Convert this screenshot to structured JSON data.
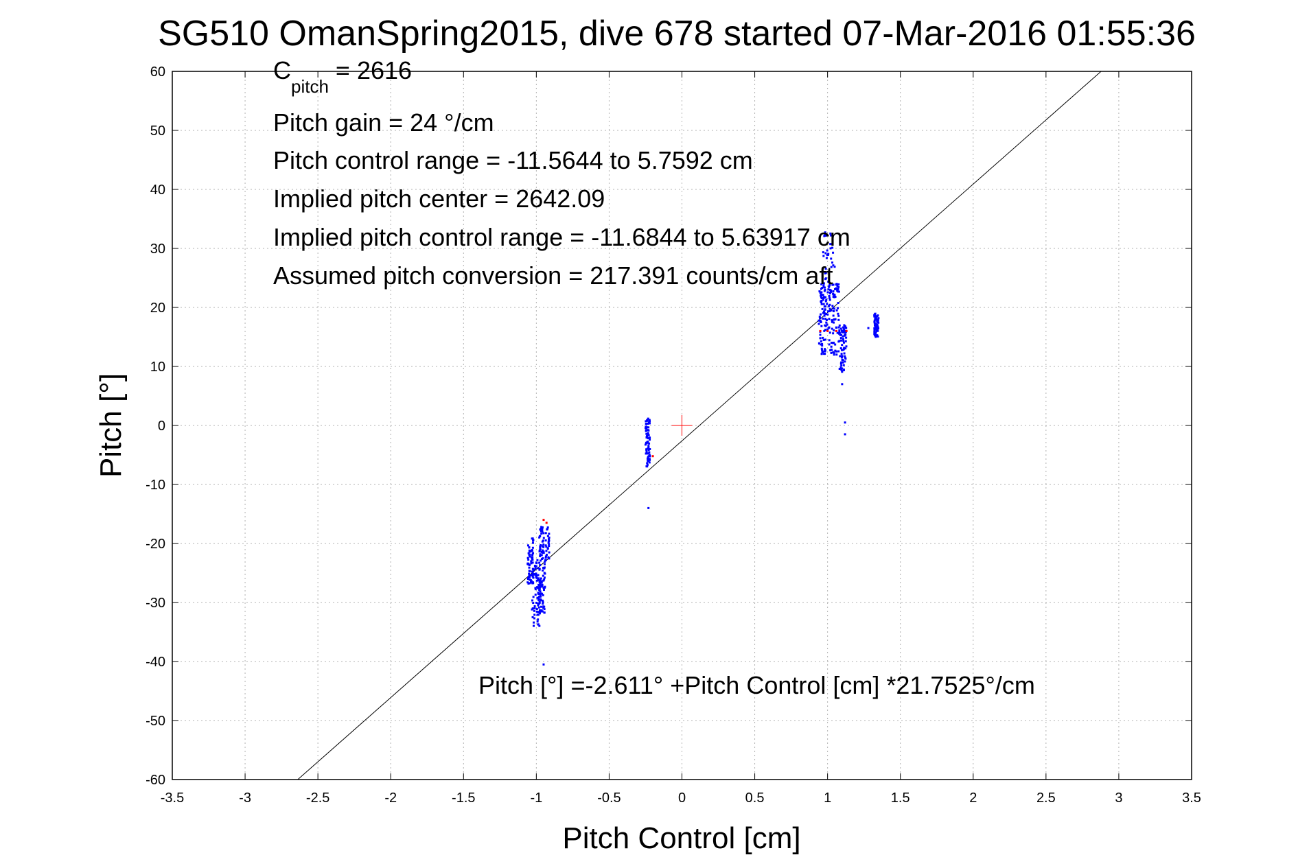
{
  "chart_data": {
    "type": "scatter",
    "title": "SG510 OmanSpring2015, dive 678 started 07-Mar-2016 01:55:36",
    "xlabel": "Pitch Control [cm]",
    "ylabel": "Pitch [°]",
    "xlim": [
      -3.5,
      3.5
    ],
    "ylim": [
      -60,
      60
    ],
    "x_ticks": [
      -3.5,
      -3,
      -2.5,
      -2,
      -1.5,
      -1,
      -0.5,
      0,
      0.5,
      1,
      1.5,
      2,
      2.5,
      3,
      3.5
    ],
    "y_ticks": [
      -60,
      -50,
      -40,
      -30,
      -20,
      -10,
      0,
      10,
      20,
      30,
      40,
      50,
      60
    ],
    "grid": true,
    "annotations": {
      "c_pitch_main": "C",
      "c_pitch_sub": "pitch",
      "c_pitch_value": " = 2616",
      "pitch_gain": "Pitch gain = 24 °/cm",
      "control_range": "Pitch control range = -11.5644 to 5.7592 cm",
      "implied_center": "Implied pitch center = 2642.09",
      "implied_range": "Implied pitch control range = -11.6844 to 5.63917 cm",
      "assumed_conversion": "Assumed pitch conversion = 217.391 counts/cm aft",
      "fit_equation": "Pitch [°] =-2.611° +Pitch Control [cm] *21.7525°/cm"
    },
    "fit_line": {
      "intercept": -2.611,
      "slope": 21.7525
    },
    "center_marker": {
      "x": 0,
      "y": 0,
      "color": "#ff0000"
    },
    "series": [
      {
        "color": "#0000ff",
        "clusters": [
          {
            "x_min": -1.06,
            "x_max": -1.02,
            "y_min": -27,
            "y_max": -19
          },
          {
            "x_min": -1.03,
            "x_max": -0.97,
            "y_min": -34,
            "y_max": -22
          },
          {
            "x_min": -0.99,
            "x_max": -0.94,
            "y_min": -32,
            "y_max": -24
          },
          {
            "x_min": -0.98,
            "x_max": -0.91,
            "y_min": -24,
            "y_max": -17
          },
          {
            "x_min": -0.25,
            "x_max": -0.22,
            "y_min": -7,
            "y_max": 1.5
          },
          {
            "x_min": 0.94,
            "x_max": 0.99,
            "y_min": 12,
            "y_max": 24
          },
          {
            "x_min": 0.97,
            "x_max": 1.05,
            "y_min": 16,
            "y_max": 33
          },
          {
            "x_min": 1.01,
            "x_max": 1.08,
            "y_min": 12,
            "y_max": 24
          },
          {
            "x_min": 1.08,
            "x_max": 1.13,
            "y_min": 9,
            "y_max": 17
          },
          {
            "x_min": 1.32,
            "x_max": 1.35,
            "y_min": 15,
            "y_max": 19
          }
        ],
        "points": [
          {
            "x": -0.95,
            "y": -40.5
          },
          {
            "x": -0.23,
            "y": -14
          },
          {
            "x": 1.12,
            "y": 0.5
          },
          {
            "x": 1.12,
            "y": -1.5
          },
          {
            "x": 1.28,
            "y": 16.5
          },
          {
            "x": 1.1,
            "y": 7
          }
        ]
      },
      {
        "color": "#ff0000",
        "points": [
          {
            "x": -0.95,
            "y": -16
          },
          {
            "x": -0.93,
            "y": -16.5
          },
          {
            "x": -0.2,
            "y": -5.2
          },
          {
            "x": 0.95,
            "y": 16
          },
          {
            "x": 1.0,
            "y": 16
          },
          {
            "x": 1.06,
            "y": 16
          },
          {
            "x": 1.13,
            "y": 16
          }
        ]
      }
    ]
  }
}
